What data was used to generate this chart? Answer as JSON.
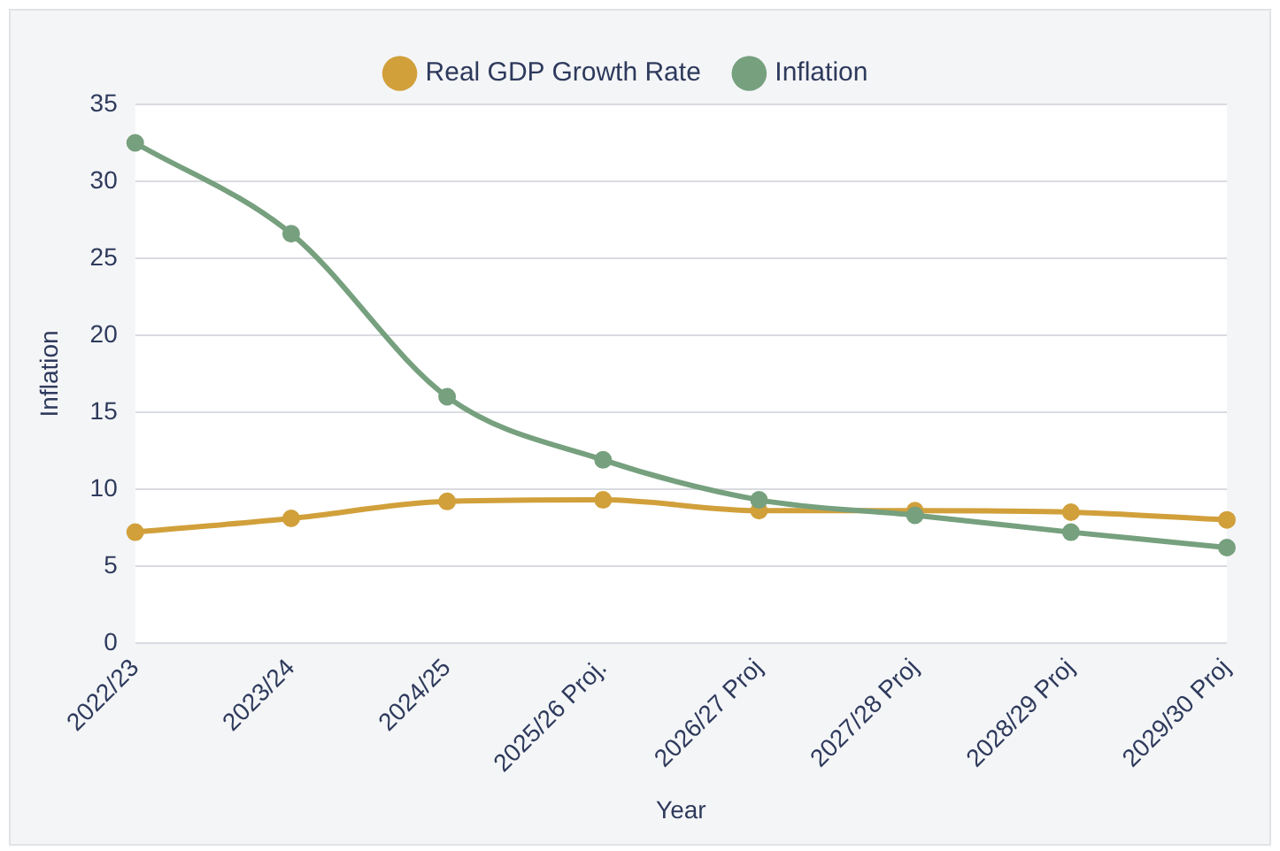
{
  "chart_data": {
    "type": "line",
    "xlabel": "Year",
    "ylabel": "Inflation",
    "categories": [
      "2022/23",
      "2023/24",
      "2024/25",
      "2025/26 Proj.",
      "2026/27 Proj",
      "2027/28 Proj",
      "2028/29 Proj",
      "2029/30 Proj"
    ],
    "series": [
      {
        "name": "Real GDP Growth Rate",
        "color": "#d1a03b",
        "values": [
          7.2,
          8.1,
          9.2,
          9.3,
          8.6,
          8.6,
          8.5,
          8.0
        ]
      },
      {
        "name": "Inflation",
        "color": "#76a07e",
        "values": [
          32.5,
          26.6,
          16.0,
          11.9,
          9.3,
          8.3,
          7.2,
          6.2
        ]
      }
    ],
    "ylim": [
      0,
      35
    ],
    "yticks": [
      0,
      5,
      10,
      15,
      20,
      25,
      30,
      35
    ],
    "grid": "y",
    "legend": "top",
    "marker": "circle"
  }
}
